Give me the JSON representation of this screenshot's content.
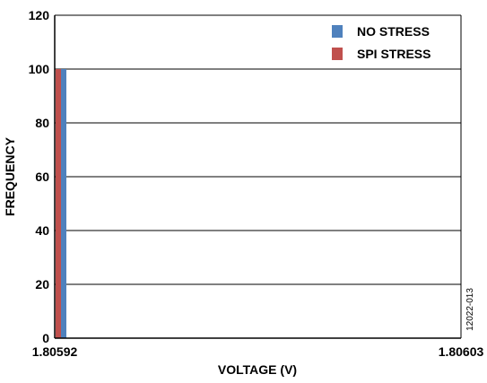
{
  "chart_data": {
    "type": "bar",
    "title": "",
    "xlabel": "VOLTAGE (V)",
    "ylabel": "FREQUENCY",
    "xlim": [
      1.80592,
      1.80603
    ],
    "ylim": [
      0,
      120
    ],
    "x_ticks": [
      "1.80592",
      "1.80603"
    ],
    "y_ticks": [
      0,
      20,
      40,
      60,
      80,
      100,
      120
    ],
    "grid": true,
    "legend_position": "top-right",
    "categories": [
      "1.80592"
    ],
    "series": [
      {
        "name": "NO STRESS",
        "color": "#4f81bd",
        "values": [
          100
        ]
      },
      {
        "name": "SPI STRESS",
        "color": "#c0504d",
        "values": [
          100
        ]
      }
    ],
    "annotation": "12022-013"
  }
}
